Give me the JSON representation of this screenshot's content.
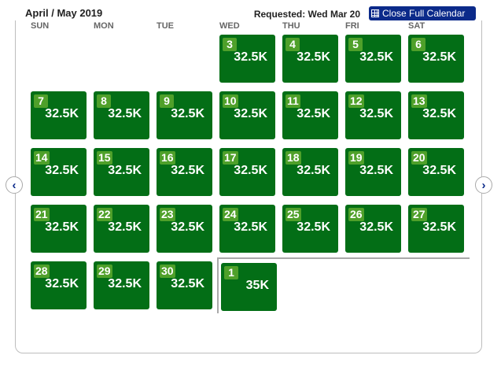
{
  "header": {
    "title": "April / May 2019",
    "requested": "Requested: Wed Mar 20",
    "close_label": "Close Full Calendar"
  },
  "weekdays": [
    "SUN",
    "MON",
    "TUE",
    "WED",
    "THU",
    "FRI",
    "SAT"
  ],
  "days": [
    {
      "col": 3,
      "row": 0,
      "num": "3",
      "price": "32.5K"
    },
    {
      "col": 4,
      "row": 0,
      "num": "4",
      "price": "32.5K"
    },
    {
      "col": 5,
      "row": 0,
      "num": "5",
      "price": "32.5K"
    },
    {
      "col": 6,
      "row": 0,
      "num": "6",
      "price": "32.5K"
    },
    {
      "col": 0,
      "row": 1,
      "num": "7",
      "price": "32.5K"
    },
    {
      "col": 1,
      "row": 1,
      "num": "8",
      "price": "32.5K"
    },
    {
      "col": 2,
      "row": 1,
      "num": "9",
      "price": "32.5K"
    },
    {
      "col": 3,
      "row": 1,
      "num": "10",
      "price": "32.5K"
    },
    {
      "col": 4,
      "row": 1,
      "num": "11",
      "price": "32.5K"
    },
    {
      "col": 5,
      "row": 1,
      "num": "12",
      "price": "32.5K"
    },
    {
      "col": 6,
      "row": 1,
      "num": "13",
      "price": "32.5K"
    },
    {
      "col": 0,
      "row": 2,
      "num": "14",
      "price": "32.5K"
    },
    {
      "col": 1,
      "row": 2,
      "num": "15",
      "price": "32.5K"
    },
    {
      "col": 2,
      "row": 2,
      "num": "16",
      "price": "32.5K"
    },
    {
      "col": 3,
      "row": 2,
      "num": "17",
      "price": "32.5K"
    },
    {
      "col": 4,
      "row": 2,
      "num": "18",
      "price": "32.5K"
    },
    {
      "col": 5,
      "row": 2,
      "num": "19",
      "price": "32.5K"
    },
    {
      "col": 6,
      "row": 2,
      "num": "20",
      "price": "32.5K"
    },
    {
      "col": 0,
      "row": 3,
      "num": "21",
      "price": "32.5K"
    },
    {
      "col": 1,
      "row": 3,
      "num": "22",
      "price": "32.5K"
    },
    {
      "col": 2,
      "row": 3,
      "num": "23",
      "price": "32.5K"
    },
    {
      "col": 3,
      "row": 3,
      "num": "24",
      "price": "32.5K"
    },
    {
      "col": 4,
      "row": 3,
      "num": "25",
      "price": "32.5K"
    },
    {
      "col": 5,
      "row": 3,
      "num": "26",
      "price": "32.5K"
    },
    {
      "col": 6,
      "row": 3,
      "num": "27",
      "price": "32.5K"
    },
    {
      "col": 0,
      "row": 4,
      "num": "28",
      "price": "32.5K"
    },
    {
      "col": 1,
      "row": 4,
      "num": "29",
      "price": "32.5K"
    },
    {
      "col": 2,
      "row": 4,
      "num": "30",
      "price": "32.5K"
    },
    {
      "col": 3,
      "row": 4,
      "num": "1",
      "price": "35K"
    }
  ],
  "nav": {
    "prev_icon": "chevron-left-icon",
    "next_icon": "chevron-right-icon"
  }
}
